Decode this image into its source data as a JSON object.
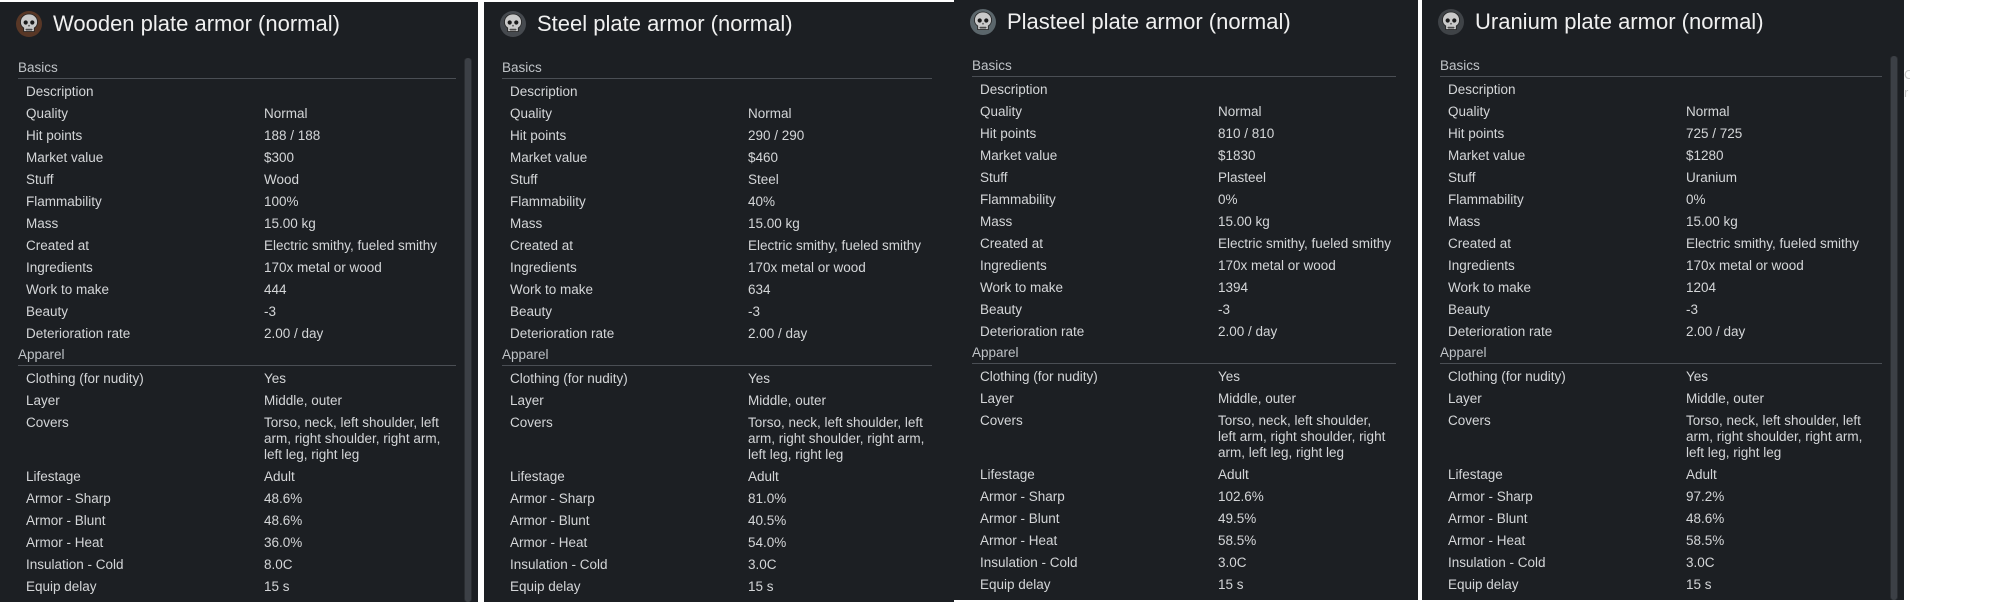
{
  "panels": [
    {
      "title": "Wooden plate armor (normal)",
      "icon": "skull-icon",
      "icon_tint": "#8a4a2a",
      "section_basics": "Basics",
      "section_apparel": "Apparel",
      "basics": [
        {
          "k": "Description",
          "v": ""
        },
        {
          "k": "Quality",
          "v": "Normal"
        },
        {
          "k": "Hit points",
          "v": "188 / 188"
        },
        {
          "k": "Market value",
          "v": "$300"
        },
        {
          "k": "Stuff",
          "v": "Wood"
        },
        {
          "k": "Flammability",
          "v": "100%"
        },
        {
          "k": "Mass",
          "v": "15.00 kg"
        },
        {
          "k": "Created at",
          "v": "Electric smithy, fueled smithy"
        },
        {
          "k": "Ingredients",
          "v": "170x metal or wood"
        },
        {
          "k": "Work to make",
          "v": "444"
        },
        {
          "k": "Beauty",
          "v": "-3"
        },
        {
          "k": "Deterioration rate",
          "v": "2.00 / day"
        }
      ],
      "apparel": [
        {
          "k": "Clothing (for nudity)",
          "v": "Yes"
        },
        {
          "k": "Layer",
          "v": "Middle, outer"
        },
        {
          "k": "Covers",
          "v": "Torso, neck, left shoulder, left arm, right shoulder, right arm, left leg, right leg"
        },
        {
          "k": "Lifestage",
          "v": "Adult"
        },
        {
          "k": "Armor - Sharp",
          "v": "48.6%"
        },
        {
          "k": "Armor - Blunt",
          "v": "48.6%"
        },
        {
          "k": "Armor - Heat",
          "v": "36.0%"
        },
        {
          "k": "Insulation - Cold",
          "v": "8.0C"
        },
        {
          "k": "Equip delay",
          "v": "15 s"
        }
      ]
    },
    {
      "title": "Steel plate armor (normal)",
      "icon": "skull-icon",
      "icon_tint": "#6a6e74",
      "section_basics": "Basics",
      "section_apparel": "Apparel",
      "basics": [
        {
          "k": "Description",
          "v": ""
        },
        {
          "k": "Quality",
          "v": "Normal"
        },
        {
          "k": "Hit points",
          "v": "290 / 290"
        },
        {
          "k": "Market value",
          "v": "$460"
        },
        {
          "k": "Stuff",
          "v": "Steel"
        },
        {
          "k": "Flammability",
          "v": "40%"
        },
        {
          "k": "Mass",
          "v": "15.00 kg"
        },
        {
          "k": "Created at",
          "v": "Electric smithy, fueled smithy"
        },
        {
          "k": "Ingredients",
          "v": "170x metal or wood"
        },
        {
          "k": "Work to make",
          "v": "634"
        },
        {
          "k": "Beauty",
          "v": "-3"
        },
        {
          "k": "Deterioration rate",
          "v": "2.00 / day"
        }
      ],
      "apparel": [
        {
          "k": "Clothing (for nudity)",
          "v": "Yes"
        },
        {
          "k": "Layer",
          "v": "Middle, outer"
        },
        {
          "k": "Covers",
          "v": "Torso, neck, left shoulder, left arm, right shoulder, right arm, left leg, right leg"
        },
        {
          "k": "Lifestage",
          "v": "Adult"
        },
        {
          "k": "Armor - Sharp",
          "v": "81.0%"
        },
        {
          "k": "Armor - Blunt",
          "v": "40.5%"
        },
        {
          "k": "Armor - Heat",
          "v": "54.0%"
        },
        {
          "k": "Insulation - Cold",
          "v": "3.0C"
        },
        {
          "k": "Equip delay",
          "v": "15 s"
        }
      ]
    },
    {
      "title": "Plasteel plate armor (normal)",
      "icon": "skull-icon",
      "icon_tint": "#8fa0a8",
      "section_basics": "Basics",
      "section_apparel": "Apparel",
      "basics": [
        {
          "k": "Description",
          "v": ""
        },
        {
          "k": "Quality",
          "v": "Normal"
        },
        {
          "k": "Hit points",
          "v": "810 / 810"
        },
        {
          "k": "Market value",
          "v": "$1830"
        },
        {
          "k": "Stuff",
          "v": "Plasteel"
        },
        {
          "k": "Flammability",
          "v": "0%"
        },
        {
          "k": "Mass",
          "v": "15.00 kg"
        },
        {
          "k": "Created at",
          "v": "Electric smithy, fueled smithy"
        },
        {
          "k": "Ingredients",
          "v": "170x metal or wood"
        },
        {
          "k": "Work to make",
          "v": "1394"
        },
        {
          "k": "Beauty",
          "v": "-3"
        },
        {
          "k": "Deterioration rate",
          "v": "2.00 / day"
        }
      ],
      "apparel": [
        {
          "k": "Clothing (for nudity)",
          "v": "Yes"
        },
        {
          "k": "Layer",
          "v": "Middle, outer"
        },
        {
          "k": "Covers",
          "v": "Torso, neck, left shoulder, left arm, right shoulder, right arm, left leg, right leg"
        },
        {
          "k": "Lifestage",
          "v": "Adult"
        },
        {
          "k": "Armor - Sharp",
          "v": "102.6%"
        },
        {
          "k": "Armor - Blunt",
          "v": "49.5%"
        },
        {
          "k": "Armor - Heat",
          "v": "58.5%"
        },
        {
          "k": "Insulation - Cold",
          "v": "3.0C"
        },
        {
          "k": "Equip delay",
          "v": "15 s"
        }
      ]
    },
    {
      "title": "Uranium plate armor (normal)",
      "icon": "skull-icon",
      "icon_tint": "#5d6166",
      "section_basics": "Basics",
      "section_apparel": "Apparel",
      "basics": [
        {
          "k": "Description",
          "v": ""
        },
        {
          "k": "Quality",
          "v": "Normal"
        },
        {
          "k": "Hit points",
          "v": "725 / 725"
        },
        {
          "k": "Market value",
          "v": "$1280"
        },
        {
          "k": "Stuff",
          "v": "Uranium"
        },
        {
          "k": "Flammability",
          "v": "0%"
        },
        {
          "k": "Mass",
          "v": "15.00 kg"
        },
        {
          "k": "Created at",
          "v": "Electric smithy, fueled smithy"
        },
        {
          "k": "Ingredients",
          "v": "170x metal or wood"
        },
        {
          "k": "Work to make",
          "v": "1204"
        },
        {
          "k": "Beauty",
          "v": "-3"
        },
        {
          "k": "Deterioration rate",
          "v": "2.00 / day"
        }
      ],
      "apparel": [
        {
          "k": "Clothing (for nudity)",
          "v": "Yes"
        },
        {
          "k": "Layer",
          "v": "Middle, outer"
        },
        {
          "k": "Covers",
          "v": "Torso, neck, left shoulder, left arm, right shoulder, right arm, left leg, right leg"
        },
        {
          "k": "Lifestage",
          "v": "Adult"
        },
        {
          "k": "Armor - Sharp",
          "v": "97.2%"
        },
        {
          "k": "Armor - Blunt",
          "v": "48.6%"
        },
        {
          "k": "Armor - Heat",
          "v": "58.5%"
        },
        {
          "k": "Insulation - Cold",
          "v": "3.0C"
        },
        {
          "k": "Equip delay",
          "v": "15 s"
        }
      ]
    }
  ],
  "edge_text": "C\nr"
}
